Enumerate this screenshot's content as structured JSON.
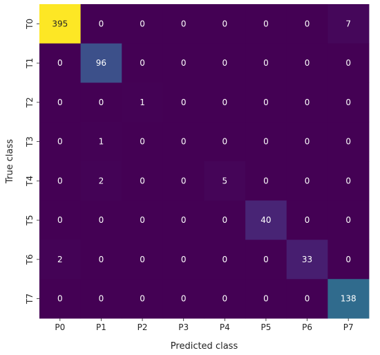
{
  "chart_data": {
    "type": "heatmap",
    "title": "",
    "xlabel": "Predicted class",
    "ylabel": "True class",
    "x_labels": [
      "P0",
      "P1",
      "P2",
      "P3",
      "P4",
      "P5",
      "P6",
      "P7"
    ],
    "y_labels": [
      "T0",
      "T1",
      "T2",
      "T3",
      "T4",
      "T5",
      "T6",
      "T7"
    ],
    "values": [
      [
        395,
        0,
        0,
        0,
        0,
        0,
        0,
        7
      ],
      [
        0,
        96,
        0,
        0,
        0,
        0,
        0,
        0
      ],
      [
        0,
        0,
        1,
        0,
        0,
        0,
        0,
        0
      ],
      [
        0,
        1,
        0,
        0,
        0,
        0,
        0,
        0
      ],
      [
        0,
        2,
        0,
        0,
        5,
        0,
        0,
        0
      ],
      [
        0,
        0,
        0,
        0,
        0,
        40,
        0,
        0
      ],
      [
        2,
        0,
        0,
        0,
        0,
        0,
        33,
        0
      ],
      [
        0,
        0,
        0,
        0,
        0,
        0,
        0,
        138
      ]
    ],
    "colormap": "viridis",
    "vmin": 0,
    "vmax": 395,
    "colorbar": false,
    "grid": false,
    "annotated": true
  }
}
